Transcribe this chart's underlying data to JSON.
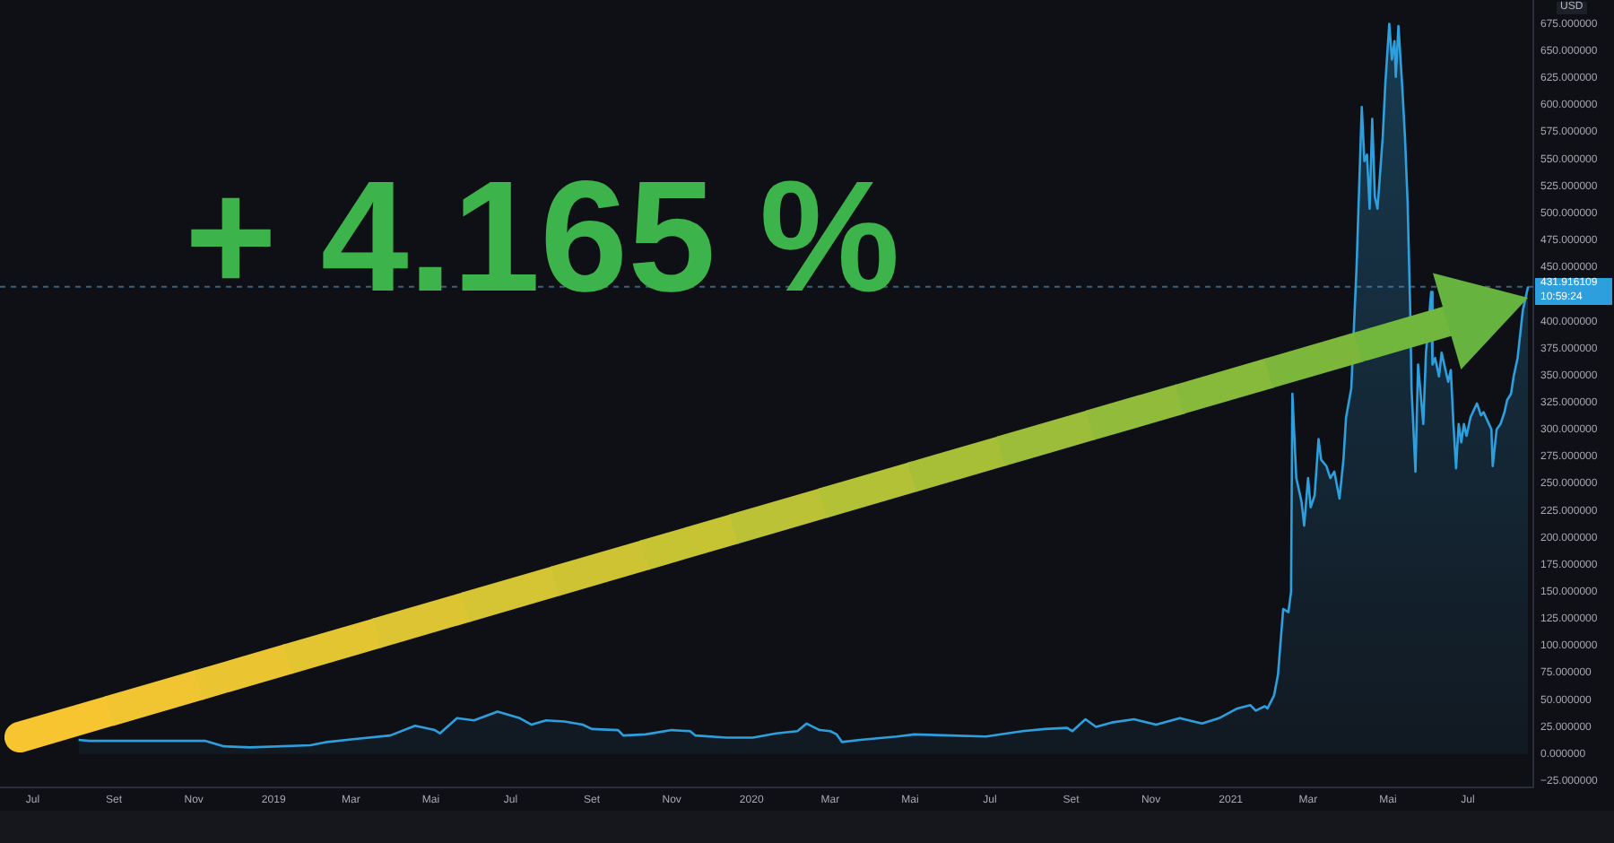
{
  "chart_data": {
    "type": "area",
    "ylabel": "USD",
    "annotations": [
      "+ 4.165 %",
      "10:59:24"
    ],
    "color": "#2e9fdd",
    "x": [
      "2018-08-05",
      "2018-08-13",
      "2018-09-05",
      "2018-11-10",
      "2018-11-24",
      "2018-12-14",
      "2019-01-29",
      "2019-02-11",
      "2019-03-06",
      "2019-03-31",
      "2019-04-19",
      "2019-05-04",
      "2019-05-08",
      "2019-05-21",
      "2019-06-03",
      "2019-06-21",
      "2019-07-08",
      "2019-07-17",
      "2019-07-28",
      "2019-08-11",
      "2019-08-25",
      "2019-09-01",
      "2019-09-21",
      "2019-09-25",
      "2019-10-12",
      "2019-11-01",
      "2019-11-15",
      "2019-11-19",
      "2019-12-13",
      "2020-01-02",
      "2020-01-20",
      "2020-02-05",
      "2020-02-12",
      "2020-02-22",
      "2020-03-01",
      "2020-03-06",
      "2020-03-10",
      "2020-03-24",
      "2020-04-21",
      "2020-05-04",
      "2020-06-01",
      "2020-06-28",
      "2020-07-26",
      "2020-08-12",
      "2020-08-29",
      "2020-09-02",
      "2020-09-12",
      "2020-09-20",
      "2020-10-02",
      "2020-10-19",
      "2020-11-05",
      "2020-11-23",
      "2020-12-10",
      "2020-12-23",
      "2021-01-06",
      "2021-01-16",
      "2021-01-20",
      "2021-01-27",
      "2021-01-29",
      "2021-02-03",
      "2021-02-06",
      "2021-02-10",
      "2021-02-14",
      "2021-02-16",
      "2021-02-17",
      "2021-02-20",
      "2021-02-24",
      "2021-02-26",
      "2021-03-01",
      "2021-03-03",
      "2021-03-06",
      "2021-03-09",
      "2021-03-11",
      "2021-03-15",
      "2021-03-18",
      "2021-03-21",
      "2021-03-25",
      "2021-03-28",
      "2021-03-30",
      "2021-04-03",
      "2021-04-05",
      "2021-04-07",
      "2021-04-11",
      "2021-04-13",
      "2021-04-15",
      "2021-04-17",
      "2021-04-19",
      "2021-04-21",
      "2021-04-23",
      "2021-04-27",
      "2021-04-29",
      "2021-05-02",
      "2021-05-04",
      "2021-05-06",
      "2021-05-07",
      "2021-05-09",
      "2021-05-12",
      "2021-05-14",
      "2021-05-16",
      "2021-05-18",
      "2021-05-19",
      "2021-05-22",
      "2021-05-24",
      "2021-05-28",
      "2021-05-30",
      "2021-06-03",
      "2021-06-04",
      "2021-06-06",
      "2021-06-09",
      "2021-06-11",
      "2021-06-13",
      "2021-06-16",
      "2021-06-18",
      "2021-06-20",
      "2021-06-22",
      "2021-06-24",
      "2021-06-26",
      "2021-06-28",
      "2021-06-30",
      "2021-07-03",
      "2021-07-06",
      "2021-07-08",
      "2021-07-11",
      "2021-07-13",
      "2021-07-16",
      "2021-07-19",
      "2021-07-20",
      "2021-07-23",
      "2021-07-26",
      "2021-07-29",
      "2021-07-31",
      "2021-08-03",
      "2021-08-05",
      "2021-08-08",
      "2021-08-10",
      "2021-08-12",
      "2021-08-16"
    ],
    "values": [
      13,
      12,
      12,
      12,
      7,
      6,
      8,
      11,
      14,
      17,
      26,
      22,
      19,
      33,
      31,
      39,
      33,
      27,
      31,
      30,
      27,
      23,
      22,
      17,
      18,
      22,
      21,
      17,
      15,
      15,
      19,
      21,
      28,
      22,
      21,
      18,
      11,
      13,
      16,
      18,
      17,
      16,
      21,
      23,
      24,
      21,
      32,
      25,
      29,
      32,
      27,
      33,
      28,
      33,
      42,
      45,
      40,
      44,
      42,
      54,
      73,
      134,
      131,
      150,
      333,
      255,
      233,
      211,
      255,
      228,
      239,
      291,
      272,
      266,
      255,
      261,
      236,
      272,
      311,
      338,
      394,
      449,
      598,
      548,
      554,
      504,
      587,
      515,
      504,
      570,
      620,
      675,
      642,
      659,
      626,
      673,
      615,
      570,
      510,
      410,
      338,
      261,
      360,
      305,
      370,
      427,
      360,
      366,
      349,
      371,
      360,
      344,
      355,
      305,
      264,
      305,
      288,
      305,
      294,
      311,
      319,
      324,
      313,
      316,
      308,
      300,
      266,
      300,
      305,
      316,
      327,
      333,
      349,
      366,
      388,
      410,
      432
    ],
    "xlim": [
      "2018-06-06",
      "2021-08-20"
    ],
    "xticks": [
      {
        "value": "2018-07",
        "label": "Jul"
      },
      {
        "value": "2018-09",
        "label": "Set"
      },
      {
        "value": "2018-11",
        "label": "Nov"
      },
      "2019",
      {
        "value": "2019-03",
        "label": "Mar"
      },
      {
        "value": "2019-05",
        "label": "Mai"
      },
      {
        "value": "2019-07",
        "label": "Jul"
      },
      {
        "value": "2019-09",
        "label": "Set"
      },
      {
        "value": "2019-11",
        "label": "Nov"
      },
      "2020",
      {
        "value": "2020-03",
        "label": "Mar"
      },
      {
        "value": "2020-05",
        "label": "Mai"
      },
      {
        "value": "2020-07",
        "label": "Jul"
      },
      {
        "value": "2020-09",
        "label": "Set"
      },
      {
        "value": "2020-11",
        "label": "Nov"
      },
      "2021",
      {
        "value": "2021-03",
        "label": "Mar"
      },
      {
        "value": "2021-05",
        "label": "Mai"
      },
      {
        "value": "2021-07",
        "label": "Jul"
      }
    ],
    "ylim": [
      -31,
      697
    ],
    "yticks": [
      {
        "value": -25,
        "label": "−25.000000"
      },
      {
        "value": 0,
        "label": "0.000000"
      },
      {
        "value": 25,
        "label": "25.000000"
      },
      {
        "value": 50,
        "label": "50.000000"
      },
      {
        "value": 75,
        "label": "75.000000"
      },
      {
        "value": 100,
        "label": "100.000000"
      },
      {
        "value": 125,
        "label": "125.000000"
      },
      {
        "value": 150,
        "label": "150.000000"
      },
      {
        "value": 175,
        "label": "175.000000"
      },
      {
        "value": 200,
        "label": "200.000000"
      },
      {
        "value": 225,
        "label": "225.000000"
      },
      {
        "value": 250,
        "label": "250.000000"
      },
      {
        "value": 275,
        "label": "275.000000"
      },
      {
        "value": 300,
        "label": "300.000000"
      },
      {
        "value": 325,
        "label": "325.000000"
      },
      {
        "value": 350,
        "label": "350.000000"
      },
      {
        "value": 375,
        "label": "375.000000"
      },
      {
        "value": 400,
        "label": "400.000000"
      },
      {
        "value": 450,
        "label": "450.000000"
      },
      {
        "value": 475,
        "label": "475.000000"
      },
      {
        "value": 500,
        "label": "500.000000"
      },
      {
        "value": 525,
        "label": "525.000000"
      },
      {
        "value": 550,
        "label": "550.000000"
      },
      {
        "value": 575,
        "label": "575.000000"
      },
      {
        "value": 600,
        "label": "600.000000"
      },
      {
        "value": 625,
        "label": "625.000000"
      },
      {
        "value": 650,
        "label": "650.000000"
      },
      {
        "value": 675,
        "label": "675.000000"
      }
    ],
    "ref_lines": [
      {
        "axis": "y",
        "value": 431.916109,
        "label": "431.916109",
        "color": "#3d5f7c",
        "line_style": "dashed"
      }
    ]
  }
}
